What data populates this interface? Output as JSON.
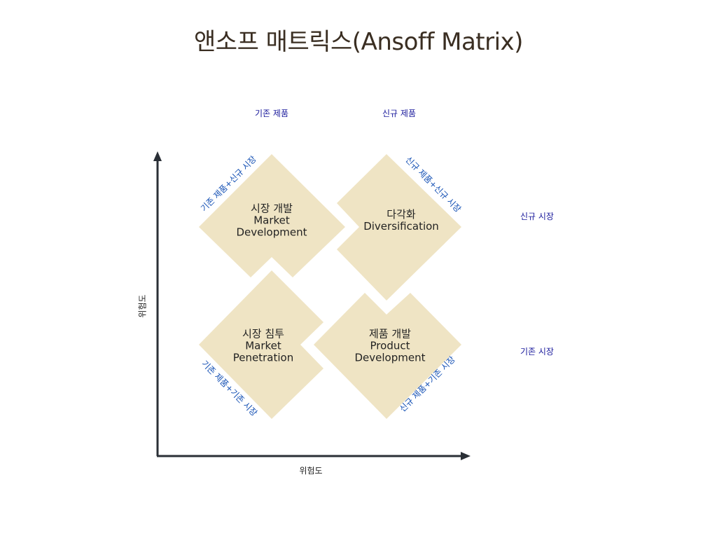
{
  "title": "앤소프 매트릭스(Ansoff Matrix)",
  "columns": {
    "existing_product": "기존 제품",
    "new_product": "신규 제품"
  },
  "rows": {
    "new_market": "신규 시장",
    "existing_market": "기존 시장"
  },
  "axes": {
    "x_label": "위험도",
    "y_label": "위험도"
  },
  "quadrants": {
    "market_development": {
      "ko": "시장 개발",
      "en_line1": "Market",
      "en_line2": "Development",
      "combo": "기존 제품+신규 시장"
    },
    "diversification": {
      "ko": "다각화",
      "en_line1": "Diversification",
      "combo": "신규 제품+신규 시장"
    },
    "market_penetration": {
      "ko": "시장 침투",
      "en_line1": "Market",
      "en_line2": "Penetration",
      "combo": "기존 제품+기존 시장"
    },
    "product_development": {
      "ko": "제품 개발",
      "en_line1": "Product",
      "en_line2": "Development",
      "combo": "신규 제품+기존 시장"
    }
  },
  "colors": {
    "diamond_fill": "#efe4c4",
    "axis": "#2a2f36",
    "header_text": "#1a1a9c",
    "diagonal_text": "#1450b4"
  }
}
